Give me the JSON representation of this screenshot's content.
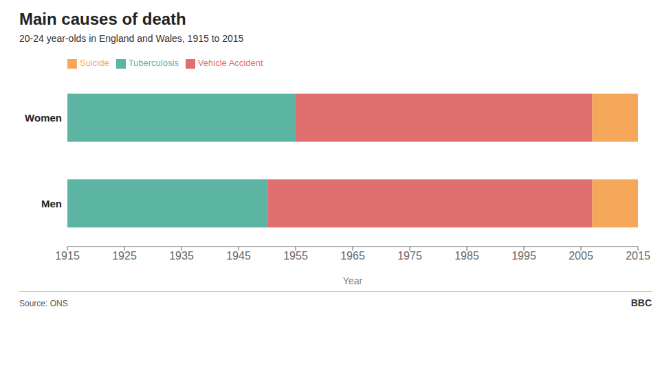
{
  "chart_data": {
    "type": "bar",
    "orientation": "horizontal",
    "title": "Main causes of death",
    "subtitle": "20-24 year-olds in England and Wales, 1915 to 2015",
    "annotations": [
      "Source: ONS",
      "BBC"
    ],
    "categories": [
      "Women",
      "Men"
    ],
    "series": [
      {
        "name": "Tuberculosis",
        "color": "#5bb5a2",
        "values": [
          [
            1915,
            1955
          ],
          [
            1915,
            1950
          ]
        ]
      },
      {
        "name": "Vehicle Accident",
        "color": "#e07070",
        "values": [
          [
            1955,
            2007
          ],
          [
            1950,
            2007
          ]
        ]
      },
      {
        "name": "Suicide",
        "color": "#f5a85a",
        "values": [
          [
            2007,
            2015
          ],
          [
            2007,
            2015
          ]
        ]
      }
    ],
    "xlabel": "Year",
    "xlim": [
      1915,
      2015
    ],
    "xticks": [
      1915,
      1925,
      1935,
      1945,
      1955,
      1965,
      1975,
      1985,
      1995,
      2005,
      2015
    ],
    "legend": "upper left",
    "grid": false
  }
}
